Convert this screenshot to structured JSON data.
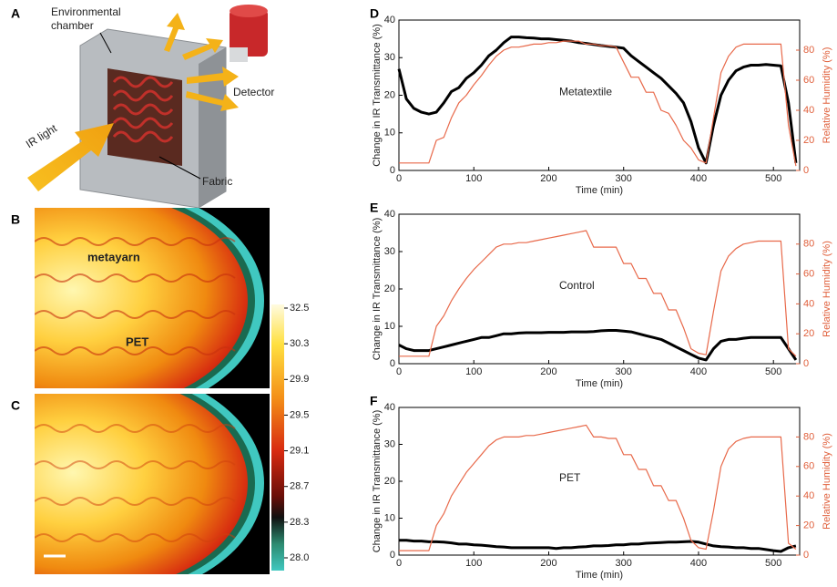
{
  "panel_a": {
    "panel": "A",
    "chamber_label": [
      "Environmental",
      "chamber"
    ],
    "light_label": "IR light",
    "fabric_label": "Fabric",
    "detector_label": "Detector"
  },
  "panel_b": {
    "panel": "B",
    "yarn_label": "metayarn",
    "pet_label": "PET"
  },
  "panel_c": {
    "panel": "C",
    "colorbar_ticks": [
      32.5,
      30.3,
      29.9,
      29.5,
      29.1,
      28.7,
      28.3,
      {
        "value": 28,
        "label": "28.0"
      }
    ]
  },
  "chart_data": [
    {
      "type": "line",
      "panel": "D",
      "annotation": "Metatextile",
      "xlabel": "Time (min)",
      "ylabel": "Change in IR Transmittance (%)",
      "y2label": "Relative Humidity (%)",
      "x": [
        0,
        10,
        20,
        30,
        40,
        50,
        60,
        70,
        80,
        90,
        100,
        110,
        120,
        130,
        140,
        150,
        160,
        170,
        180,
        190,
        200,
        210,
        220,
        230,
        240,
        250,
        260,
        270,
        280,
        290,
        300,
        310,
        320,
        330,
        340,
        350,
        360,
        370,
        380,
        390,
        400,
        410,
        420,
        430,
        440,
        450,
        460,
        470,
        480,
        490,
        500,
        510,
        520,
        530
      ],
      "xlim": [
        0,
        535
      ],
      "xticks": [
        0,
        100,
        200,
        300,
        400,
        500
      ],
      "ylim": [
        0,
        40
      ],
      "yticks": [
        0,
        10,
        20,
        30,
        40
      ],
      "y2lim": [
        0,
        100
      ],
      "y2ticks": [
        0,
        20,
        40,
        60,
        80
      ],
      "series": [
        {
          "name": "IR transmittance",
          "color": "#000000",
          "values": [
            27,
            19,
            16.5,
            15.5,
            15,
            15.5,
            18,
            21,
            22,
            24.5,
            26,
            28,
            30.5,
            32,
            34,
            35.5,
            35.5,
            35.3,
            35.2,
            35,
            35,
            34.8,
            34.6,
            34.4,
            34,
            33.8,
            33.5,
            33.2,
            33,
            32.8,
            32.5,
            30.5,
            29,
            27.5,
            26,
            24.5,
            22.5,
            20.5,
            18,
            13,
            6,
            2,
            12,
            20,
            24,
            26.5,
            27.5,
            28,
            28,
            28.2,
            28,
            27.8,
            18,
            2
          ]
        },
        {
          "name": "Relative humidity",
          "color": "#e8694a",
          "axis": "y2",
          "values": [
            5,
            5,
            5,
            5,
            5,
            20,
            22,
            35,
            45,
            50,
            57,
            63,
            70,
            76,
            80,
            82,
            82,
            83,
            84,
            84,
            85,
            85,
            86,
            86,
            86,
            84,
            84,
            83,
            83,
            82,
            72,
            62,
            62,
            52,
            52,
            40,
            38,
            30,
            20,
            15,
            7,
            5,
            35,
            65,
            76,
            82,
            84,
            84,
            84,
            84,
            84,
            84,
            30,
            3
          ]
        }
      ]
    },
    {
      "type": "line",
      "panel": "E",
      "annotation": "Control",
      "xlabel": "Time (min)",
      "ylabel": "Change in IR Transmittance (%)",
      "y2label": "Relative Humidity (%)",
      "x": [
        0,
        10,
        20,
        30,
        40,
        50,
        60,
        70,
        80,
        90,
        100,
        110,
        120,
        130,
        140,
        150,
        160,
        170,
        180,
        190,
        200,
        210,
        220,
        230,
        240,
        250,
        260,
        270,
        280,
        290,
        300,
        310,
        320,
        330,
        340,
        350,
        360,
        370,
        380,
        390,
        400,
        410,
        420,
        430,
        440,
        450,
        460,
        470,
        480,
        490,
        500,
        510,
        520,
        530
      ],
      "xlim": [
        0,
        535
      ],
      "xticks": [
        0,
        100,
        200,
        300,
        400,
        500
      ],
      "ylim": [
        0,
        40
      ],
      "yticks": [
        0,
        10,
        20,
        30,
        40
      ],
      "y2lim": [
        0,
        100
      ],
      "y2ticks": [
        0,
        20,
        40,
        60,
        80
      ],
      "series": [
        {
          "name": "IR transmittance",
          "color": "#000000",
          "values": [
            5,
            4,
            3.5,
            3.5,
            3.5,
            4,
            4.5,
            5,
            5.5,
            6,
            6.5,
            7,
            7,
            7.5,
            8,
            8,
            8.2,
            8.3,
            8.3,
            8.3,
            8.4,
            8.4,
            8.4,
            8.5,
            8.5,
            8.5,
            8.6,
            8.8,
            8.9,
            8.9,
            8.7,
            8.5,
            8,
            7.5,
            7,
            6.5,
            5.5,
            4.5,
            3.5,
            2.5,
            1.5,
            1,
            4,
            6,
            6.5,
            6.5,
            6.8,
            7,
            7,
            7,
            7,
            7,
            4,
            1
          ]
        },
        {
          "name": "Relative humidity",
          "color": "#e8694a",
          "axis": "y2",
          "values": [
            5,
            5,
            5,
            5,
            5,
            25,
            32,
            42,
            50,
            57,
            63,
            68,
            73,
            78,
            80,
            80,
            81,
            81,
            82,
            83,
            84,
            85,
            86,
            87,
            88,
            89,
            78,
            78,
            78,
            78,
            67,
            67,
            57,
            57,
            47,
            47,
            36,
            36,
            24,
            10,
            7,
            6,
            35,
            62,
            72,
            77,
            80,
            81,
            82,
            82,
            82,
            82,
            10,
            5
          ]
        }
      ]
    },
    {
      "type": "line",
      "panel": "F",
      "annotation": "PET",
      "xlabel": "Time (min)",
      "ylabel": "Change in IR Transmittance (%)",
      "y2label": "Relative Humidity (%)",
      "x": [
        0,
        10,
        20,
        30,
        40,
        50,
        60,
        70,
        80,
        90,
        100,
        110,
        120,
        130,
        140,
        150,
        160,
        170,
        180,
        190,
        200,
        210,
        220,
        230,
        240,
        250,
        260,
        270,
        280,
        290,
        300,
        310,
        320,
        330,
        340,
        350,
        360,
        370,
        380,
        390,
        400,
        410,
        420,
        430,
        440,
        450,
        460,
        470,
        480,
        490,
        500,
        510,
        520,
        530
      ],
      "xlim": [
        0,
        535
      ],
      "xticks": [
        0,
        100,
        200,
        300,
        400,
        500
      ],
      "ylim": [
        0,
        40
      ],
      "yticks": [
        0,
        10,
        20,
        30,
        40
      ],
      "y2lim": [
        0,
        100
      ],
      "y2ticks": [
        0,
        20,
        40,
        60,
        80
      ],
      "series": [
        {
          "name": "IR transmittance",
          "color": "#000000",
          "values": [
            4,
            4,
            3.8,
            3.8,
            3.6,
            3.6,
            3.5,
            3.3,
            3,
            3,
            2.8,
            2.7,
            2.5,
            2.3,
            2.2,
            2,
            2,
            2,
            2,
            2,
            2,
            1.8,
            2,
            2,
            2.2,
            2.3,
            2.5,
            2.5,
            2.6,
            2.8,
            2.8,
            3,
            3,
            3.2,
            3.3,
            3.4,
            3.5,
            3.5,
            3.6,
            3.7,
            3.5,
            3,
            2.5,
            2.3,
            2.2,
            2,
            2,
            1.8,
            1.8,
            1.5,
            1.2,
            1,
            2,
            2.5
          ]
        },
        {
          "name": "Relative humidity",
          "color": "#e8694a",
          "axis": "y2",
          "values": [
            3,
            3,
            3,
            3,
            3,
            20,
            28,
            40,
            48,
            56,
            62,
            68,
            74,
            78,
            80,
            80,
            80,
            81,
            81,
            82,
            83,
            84,
            85,
            86,
            87,
            88,
            80,
            80,
            79,
            79,
            68,
            68,
            58,
            58,
            47,
            47,
            37,
            37,
            25,
            10,
            5,
            4,
            30,
            60,
            72,
            77,
            79,
            80,
            80,
            80,
            80,
            80,
            8,
            4
          ]
        }
      ]
    }
  ]
}
